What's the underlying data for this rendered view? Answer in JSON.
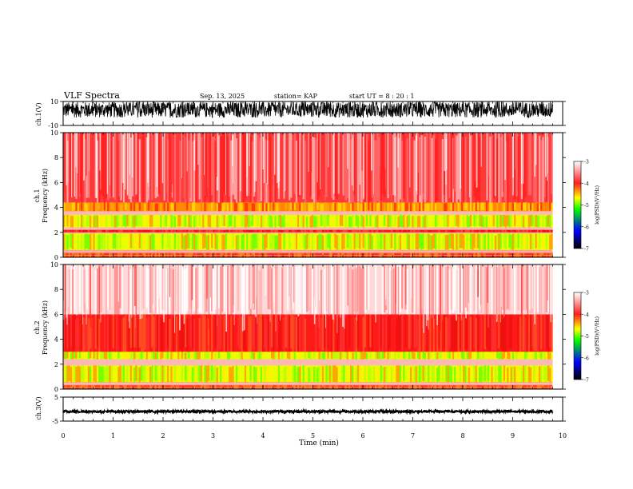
{
  "header": {
    "title": "VLF Spectra",
    "date": "Sep. 13, 2025",
    "station": "station= KAP",
    "start": "start  UT =   8 : 20 : 1"
  },
  "colorbar": {
    "label": "log(PSD)(V²/Hz)",
    "ticks": [
      "-3",
      "-4",
      "-5",
      "-6",
      "-7"
    ],
    "colors": [
      "#ffffff",
      "#ff2020",
      "#ffff00",
      "#00ff00",
      "#0000ff",
      "#000000"
    ]
  },
  "chart_data": [
    {
      "type": "line",
      "name": "ch1-waveform",
      "ylabel": "ch.1(V)",
      "ylim": [
        -10,
        10
      ],
      "ytick_labels": [
        "10",
        "-10"
      ],
      "xlim": [
        0,
        9.8
      ],
      "description": "noisy waveform, amplitude mostly between -4 and +10 V"
    },
    {
      "type": "heatmap",
      "name": "ch1-spectrogram",
      "ylabel": "ch.1\nFrequency (kHz)",
      "ylim": [
        0,
        10
      ],
      "ytick_labels": [
        "0",
        "2",
        "4",
        "6",
        "8",
        "10"
      ],
      "xlim": [
        0,
        9.8
      ],
      "bands_khz": [
        {
          "from": 0.0,
          "to": 0.4,
          "level": "red-orange"
        },
        {
          "from": 0.6,
          "to": 1.9,
          "level": "yellow-green"
        },
        {
          "from": 2.0,
          "to": 2.2,
          "level": "red"
        },
        {
          "from": 2.4,
          "to": 3.4,
          "level": "yellow-green"
        },
        {
          "from": 3.7,
          "to": 4.4,
          "level": "orange"
        },
        {
          "from": 4.4,
          "to": 10.0,
          "level": "red-white"
        }
      ]
    },
    {
      "type": "heatmap",
      "name": "ch2-spectrogram",
      "ylabel": "ch.2\nFrequency (kHz)",
      "ylim": [
        0,
        10
      ],
      "ytick_labels": [
        "0",
        "2",
        "4",
        "6",
        "8",
        "10"
      ],
      "xlim": [
        0,
        9.8
      ],
      "bands_khz": [
        {
          "from": 0.0,
          "to": 0.3,
          "level": "red-orange"
        },
        {
          "from": 0.5,
          "to": 1.9,
          "level": "yellow-green"
        },
        {
          "from": 2.4,
          "to": 3.0,
          "level": "yellow-green"
        },
        {
          "from": 3.0,
          "to": 6.0,
          "level": "red"
        },
        {
          "from": 6.0,
          "to": 10.0,
          "level": "white-red"
        }
      ]
    },
    {
      "type": "line",
      "name": "ch3-waveform",
      "ylabel": "ch.3(V)",
      "ylim": [
        -5,
        5
      ],
      "ytick_labels": [
        "5",
        "-5"
      ],
      "xlim": [
        0,
        9.8
      ],
      "description": "flat dense band around -1 V"
    }
  ],
  "xaxis": {
    "label": "Time  (min)",
    "ticks": [
      "0",
      "1",
      "2",
      "3",
      "4",
      "5",
      "6",
      "7",
      "8",
      "9",
      "10"
    ],
    "range": [
      0,
      10
    ]
  }
}
